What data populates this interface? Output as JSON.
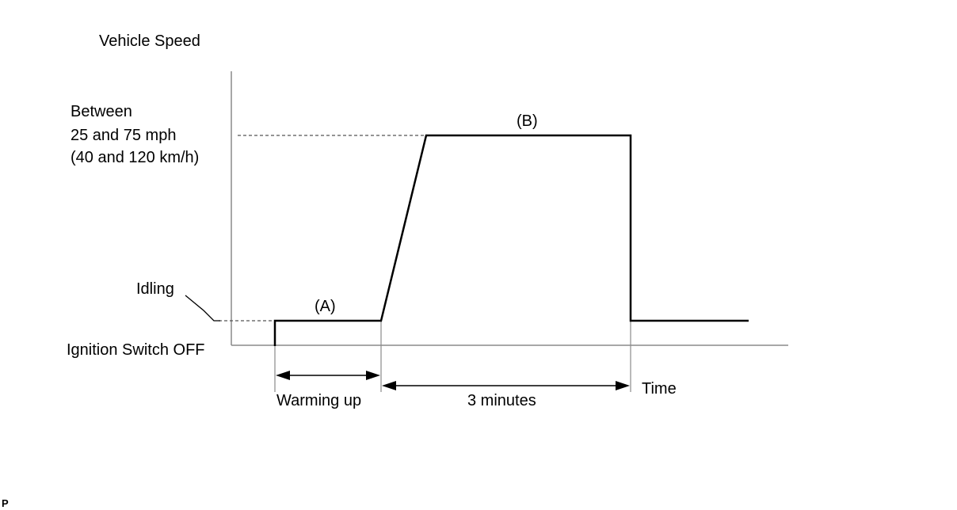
{
  "diagram": {
    "y_axis_label": "Vehicle Speed",
    "x_axis_label": "Time",
    "speed_level": {
      "line1": "Between",
      "line2": "25 and 75 mph",
      "line3": "(40 and 120 km/h)"
    },
    "idling_label": "Idling",
    "ignition_label": "Ignition Switch OFF",
    "phase_a_label": "(A)",
    "phase_b_label": "(B)",
    "warming_up_label": "Warming up",
    "duration_label": "3 minutes",
    "corner_mark": "P"
  }
}
